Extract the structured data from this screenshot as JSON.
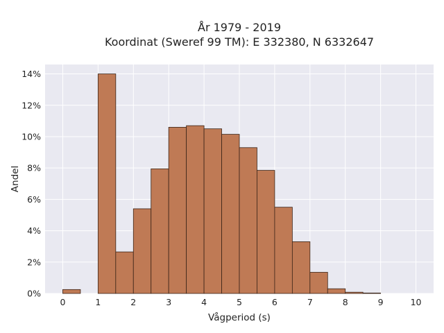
{
  "chart_data": {
    "type": "bar",
    "title_line1": "År 1979 - 2019",
    "title_line2": "Koordinat (Sweref 99 TM): E 332380, N 6332647",
    "xlabel": "Vågperiod (s)",
    "ylabel": "Andel",
    "xlim": [
      -0.5,
      10.5
    ],
    "ylim": [
      0,
      14.6
    ],
    "x_ticks": [
      0,
      1,
      2,
      3,
      4,
      5,
      6,
      7,
      8,
      9,
      10
    ],
    "x_tick_labels": [
      "0",
      "1",
      "2",
      "3",
      "4",
      "5",
      "6",
      "7",
      "8",
      "9",
      "10"
    ],
    "y_ticks": [
      0,
      2,
      4,
      6,
      8,
      10,
      12,
      14
    ],
    "y_tick_labels": [
      "0%",
      "2%",
      "4%",
      "6%",
      "8%",
      "10%",
      "12%",
      "14%"
    ],
    "bin_width": 0.5,
    "bins": [
      {
        "x": 0.0,
        "value": 0.25
      },
      {
        "x": 0.5,
        "value": 0.0
      },
      {
        "x": 1.0,
        "value": 14.0
      },
      {
        "x": 1.5,
        "value": 2.65
      },
      {
        "x": 2.0,
        "value": 5.4
      },
      {
        "x": 2.5,
        "value": 7.95
      },
      {
        "x": 3.0,
        "value": 10.6
      },
      {
        "x": 3.5,
        "value": 10.7
      },
      {
        "x": 4.0,
        "value": 10.5
      },
      {
        "x": 4.5,
        "value": 10.15
      },
      {
        "x": 5.0,
        "value": 9.3
      },
      {
        "x": 5.5,
        "value": 7.85
      },
      {
        "x": 6.0,
        "value": 5.5
      },
      {
        "x": 6.5,
        "value": 3.3
      },
      {
        "x": 7.0,
        "value": 1.35
      },
      {
        "x": 7.5,
        "value": 0.3
      },
      {
        "x": 8.0,
        "value": 0.08
      },
      {
        "x": 8.5,
        "value": 0.03
      },
      {
        "x": 9.0,
        "value": 0.0
      },
      {
        "x": 9.5,
        "value": 0.0
      }
    ],
    "grid": true,
    "colors": {
      "bar_fill": "#bf7a55",
      "plot_background": "#e9e9f1",
      "grid": "#ffffff"
    }
  }
}
